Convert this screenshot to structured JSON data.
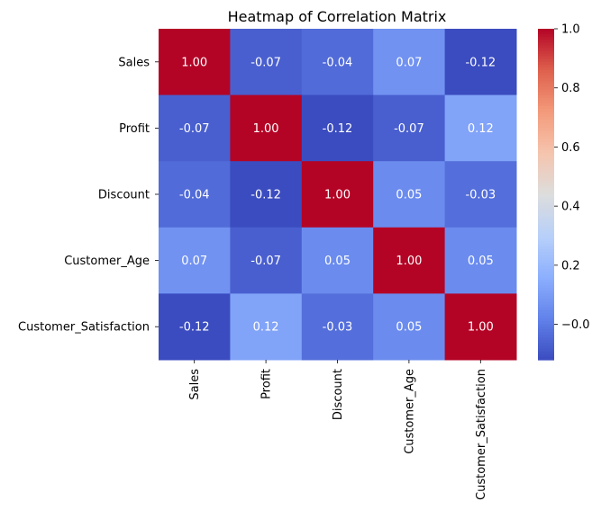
{
  "chart_data": {
    "type": "heatmap",
    "title": "Heatmap of Correlation Matrix",
    "xlabel": "",
    "ylabel": "",
    "x_categories": [
      "Sales",
      "Profit",
      "Discount",
      "Customer_Age",
      "Customer_Satisfaction"
    ],
    "y_categories": [
      "Sales",
      "Profit",
      "Discount",
      "Customer_Age",
      "Customer_Satisfaction"
    ],
    "values": [
      [
        1.0,
        -0.07,
        -0.04,
        0.07,
        -0.12
      ],
      [
        -0.07,
        1.0,
        -0.12,
        -0.07,
        0.12
      ],
      [
        -0.04,
        -0.12,
        1.0,
        0.05,
        -0.03
      ],
      [
        0.07,
        -0.07,
        0.05,
        1.0,
        0.05
      ],
      [
        -0.12,
        0.12,
        -0.03,
        0.05,
        1.0
      ]
    ],
    "value_labels": [
      [
        "1.00",
        "-0.07",
        "-0.04",
        "0.07",
        "-0.12"
      ],
      [
        "-0.07",
        "1.00",
        "-0.12",
        "-0.07",
        "0.12"
      ],
      [
        "-0.04",
        "-0.12",
        "1.00",
        "0.05",
        "-0.03"
      ],
      [
        "0.07",
        "-0.07",
        "0.05",
        "1.00",
        "0.05"
      ],
      [
        "-0.12",
        "0.12",
        "-0.03",
        "0.05",
        "1.00"
      ]
    ],
    "colormap": "coolwarm",
    "colorbar": {
      "vmin": -0.12,
      "vmax": 1.0,
      "ticks": [
        -0.0,
        0.2,
        0.4,
        0.6,
        0.8,
        1.0
      ],
      "tick_labels": [
        "−0.0",
        "0.2",
        "0.4",
        "0.6",
        "0.8",
        "1.0"
      ],
      "placement": "right"
    },
    "grid": false,
    "annotations": true
  }
}
